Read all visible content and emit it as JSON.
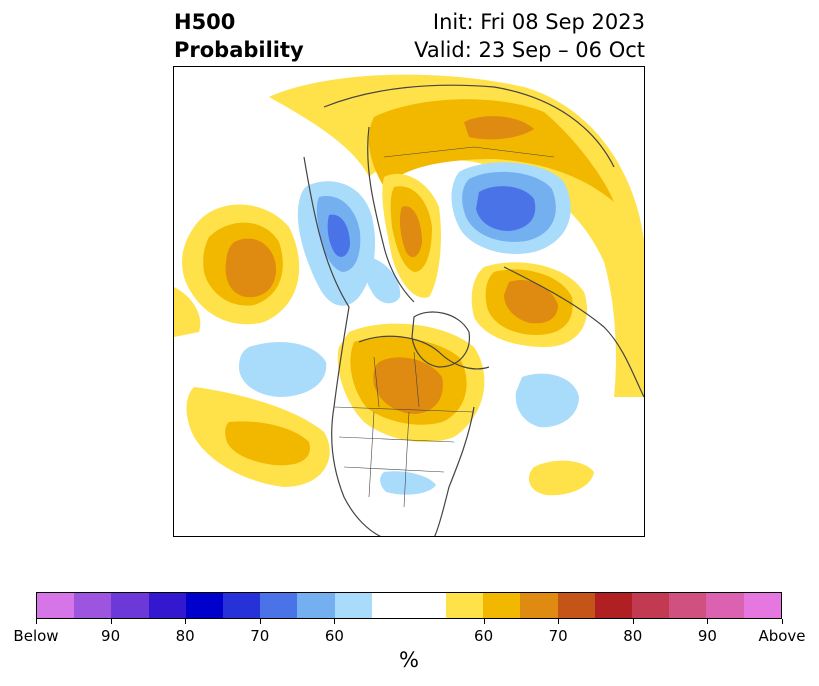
{
  "title": {
    "left_line1": "H500",
    "left_line2": "Probability",
    "right_line1": "Init: Fri 08 Sep 2023",
    "right_line2": "Valid: 23 Sep – 06 Oct"
  },
  "colorbar": {
    "unit": "%",
    "colors": [
      "#d675e8",
      "#9d55e0",
      "#6c38d8",
      "#3418d0",
      "#0000cc",
      "#2632d8",
      "#4a73e8",
      "#74b0f0",
      "#a9dcfb",
      "#ffffff",
      "#ffffff",
      "#ffe14a",
      "#f2b800",
      "#df8a10",
      "#c55418",
      "#b01f22",
      "#c23a52",
      "#d05080",
      "#da62b0",
      "#e677e0"
    ],
    "ticks": [
      {
        "label": "Below"
      },
      {
        "label": "90"
      },
      {
        "label": "80"
      },
      {
        "label": "70"
      },
      {
        "label": "60"
      },
      {
        "label": "60"
      },
      {
        "label": "70"
      },
      {
        "label": "80"
      },
      {
        "label": "90"
      },
      {
        "label": "Above"
      }
    ]
  },
  "map": {
    "colors": {
      "above_light": "#ffe14a",
      "above_mid": "#f2b800",
      "above_dark": "#df8a10",
      "below_light": "#a9dcfb",
      "below_mid": "#74b0f0",
      "below_dark": "#4a73e8",
      "coast": "#444444"
    }
  }
}
